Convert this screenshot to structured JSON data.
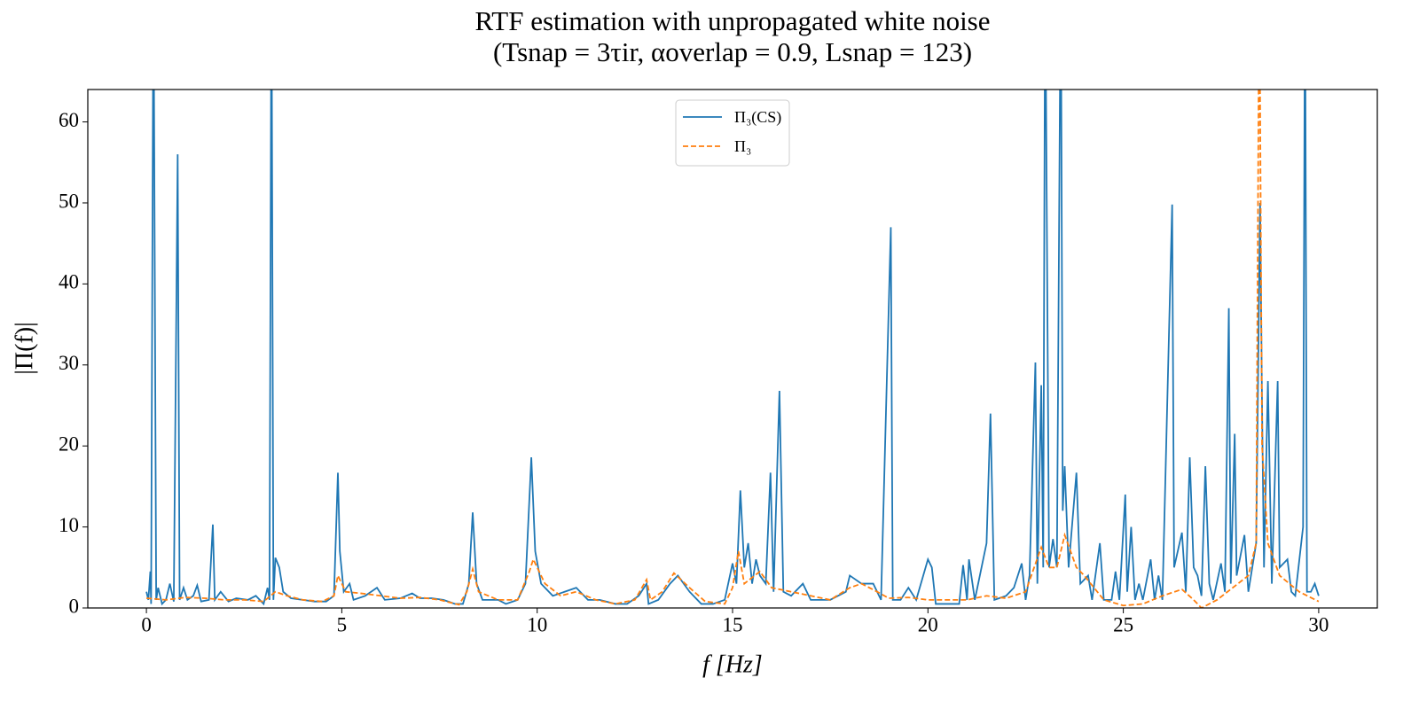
{
  "chart_data": {
    "type": "line",
    "title": "RTF estimation with unpropagated white noise",
    "subtitle": "(Tsnap = 3τir,   αoverlap = 0.9,   Lsnap = 123)",
    "x_label": "f [Hz]",
    "y_label": "|Π(f)|",
    "xlim": [
      -1.5,
      31.5
    ],
    "ylim": [
      0,
      64
    ],
    "xticks": [
      0,
      5,
      10,
      15,
      20,
      25,
      30
    ],
    "yticks": [
      0,
      10,
      20,
      30,
      40,
      50,
      60
    ],
    "legend": "upper center",
    "series": [
      {
        "name": "Π₃(CS)",
        "color": "#1f77b4",
        "style": "solid",
        "x": [
          0,
          0.05,
          0.1,
          0.12,
          0.18,
          0.25,
          0.3,
          0.4,
          0.5,
          0.6,
          0.7,
          0.8,
          0.85,
          0.95,
          1.05,
          1.2,
          1.3,
          1.4,
          1.6,
          1.7,
          1.75,
          1.9,
          2.1,
          2.3,
          2.6,
          2.8,
          3.0,
          3.1,
          3.15,
          3.2,
          3.25,
          3.3,
          3.4,
          3.5,
          3.7,
          4,
          4.3,
          4.6,
          4.8,
          4.9,
          4.95,
          5.05,
          5.2,
          5.3,
          5.6,
          5.9,
          6.1,
          6.5,
          6.8,
          7.0,
          7.3,
          7.6,
          7.9,
          8.1,
          8.25,
          8.35,
          8.45,
          8.6,
          9,
          9.2,
          9.5,
          9.7,
          9.85,
          9.95,
          10.1,
          10.4,
          10.7,
          11,
          11.3,
          11.6,
          12,
          12.3,
          12.6,
          12.8,
          12.85,
          13.1,
          13.4,
          13.6,
          13.9,
          14.2,
          14.5,
          14.8,
          15.0,
          15.1,
          15.2,
          15.3,
          15.4,
          15.5,
          15.6,
          15.7,
          15.85,
          15.97,
          16.05,
          16.2,
          16.3,
          16.5,
          16.8,
          17,
          17.5,
          17.9,
          18.0,
          18.3,
          18.6,
          18.8,
          19.05,
          19.1,
          19.3,
          19.5,
          19.7,
          20.0,
          20.1,
          20.2,
          20.5,
          20.8,
          20.9,
          21.0,
          21.05,
          21.2,
          21.5,
          21.6,
          21.7,
          22,
          22.2,
          22.4,
          22.5,
          22.6,
          22.75,
          22.8,
          22.9,
          22.95,
          23.0,
          23.1,
          23.2,
          23.3,
          23.4,
          23.45,
          23.5,
          23.6,
          23.8,
          23.9,
          24.1,
          24.2,
          24.4,
          24.5,
          24.7,
          24.8,
          24.9,
          25.05,
          25.1,
          25.2,
          25.3,
          25.4,
          25.5,
          25.7,
          25.8,
          25.9,
          26.0,
          26.25,
          26.3,
          26.5,
          26.6,
          26.7,
          26.8,
          26.9,
          27.0,
          27.1,
          27.2,
          27.3,
          27.5,
          27.6,
          27.7,
          27.75,
          27.85,
          27.9,
          28.1,
          28.2,
          28.4,
          28.5,
          28.55,
          28.6,
          28.7,
          28.8,
          28.95,
          29.0,
          29.2,
          29.3,
          29.4,
          29.6,
          29.65,
          29.7,
          29.8,
          29.9,
          30
        ],
        "values": [
          2,
          1,
          4.5,
          0.5,
          80,
          1,
          2.5,
          0.5,
          1,
          3,
          0.8,
          56,
          1,
          2.5,
          1,
          1.5,
          2.8,
          0.8,
          1,
          10.3,
          1,
          2,
          0.8,
          1.2,
          1,
          1.5,
          0.5,
          2.5,
          1,
          80,
          1,
          6.2,
          5,
          2,
          1.2,
          1,
          0.8,
          0.8,
          1.5,
          16.7,
          7,
          2,
          3,
          1,
          1.5,
          2.5,
          1,
          1.2,
          1.8,
          1.2,
          1.2,
          1,
          0.5,
          0.5,
          3,
          11.8,
          3,
          1,
          1,
          0.5,
          1,
          3,
          18.6,
          7,
          3,
          1.5,
          2,
          2.5,
          1,
          1,
          0.5,
          0.5,
          1.5,
          3,
          0.5,
          1,
          3,
          4,
          2,
          0.5,
          0.5,
          1,
          5.5,
          3,
          14.5,
          5,
          8,
          3,
          6,
          4,
          3,
          16.7,
          2,
          26.8,
          2,
          1.5,
          3,
          1,
          1,
          2,
          4,
          3,
          3,
          1,
          47,
          1,
          1,
          2.5,
          1,
          6,
          5,
          0.5,
          0.5,
          0.5,
          5.3,
          1,
          6,
          1,
          8,
          24,
          1,
          1.5,
          2.5,
          5.5,
          1,
          4,
          30.3,
          3,
          27.5,
          5,
          80,
          5,
          8.5,
          5,
          80,
          12,
          17.5,
          5,
          16.7,
          3,
          4,
          1,
          8,
          1,
          1,
          4.5,
          1,
          14,
          2,
          10,
          1,
          3,
          1,
          6,
          1,
          4,
          1,
          49.8,
          5,
          9.3,
          2,
          18.6,
          5,
          4,
          1.5,
          17.5,
          3,
          1,
          5.5,
          2,
          37,
          3,
          21.5,
          4,
          9,
          2,
          8,
          50,
          25,
          5,
          28,
          3,
          28,
          5,
          6,
          2,
          1.5,
          10,
          80,
          2,
          2,
          3,
          1.5
        ]
      },
      {
        "name": "Π₃",
        "color": "#ff7f0e",
        "style": "dashed",
        "x": [
          0,
          0.5,
          1,
          1.5,
          2,
          2.5,
          3,
          3.3,
          3.6,
          4,
          4.5,
          4.8,
          4.9,
          5.1,
          5.5,
          6,
          6.5,
          7,
          7.5,
          8,
          8.2,
          8.35,
          8.5,
          9,
          9.5,
          9.8,
          9.9,
          10.2,
          10.6,
          11,
          11.5,
          12,
          12.5,
          12.8,
          12.9,
          13.2,
          13.5,
          13.9,
          14.3,
          14.8,
          15.0,
          15.15,
          15.3,
          15.7,
          16,
          16.5,
          17,
          17.5,
          18,
          18.3,
          18.7,
          19,
          19.5,
          20,
          20.5,
          21,
          21.5,
          22,
          22.5,
          22.9,
          23.1,
          23.3,
          23.5,
          23.8,
          24,
          24.5,
          25,
          25.5,
          26,
          26.5,
          26.8,
          27.0,
          27.4,
          27.8,
          28.2,
          28.4,
          28.48,
          28.55,
          28.7,
          29,
          29.5,
          30
        ],
        "values": [
          1.2,
          1,
          1.3,
          1.2,
          1,
          1,
          0.8,
          2,
          1.5,
          1,
          0.8,
          1.5,
          4,
          2,
          1.8,
          1.5,
          1.2,
          1.3,
          1,
          0.4,
          2,
          4.8,
          2,
          1,
          1,
          4.5,
          6,
          3,
          1.5,
          2,
          1,
          0.5,
          1,
          3.5,
          1,
          2,
          4.3,
          2.5,
          0.8,
          0.5,
          2.5,
          7,
          3,
          4.5,
          2.5,
          2,
          1.5,
          1,
          2.5,
          3,
          2,
          1.2,
          1.3,
          1,
          1,
          1,
          1.5,
          1.2,
          2,
          7.5,
          5,
          5,
          9,
          5,
          4,
          1,
          0.3,
          0.5,
          1.5,
          2.3,
          1,
          0,
          1,
          2.5,
          4,
          8,
          80,
          20,
          8,
          4,
          2,
          0.8
        ]
      }
    ]
  }
}
